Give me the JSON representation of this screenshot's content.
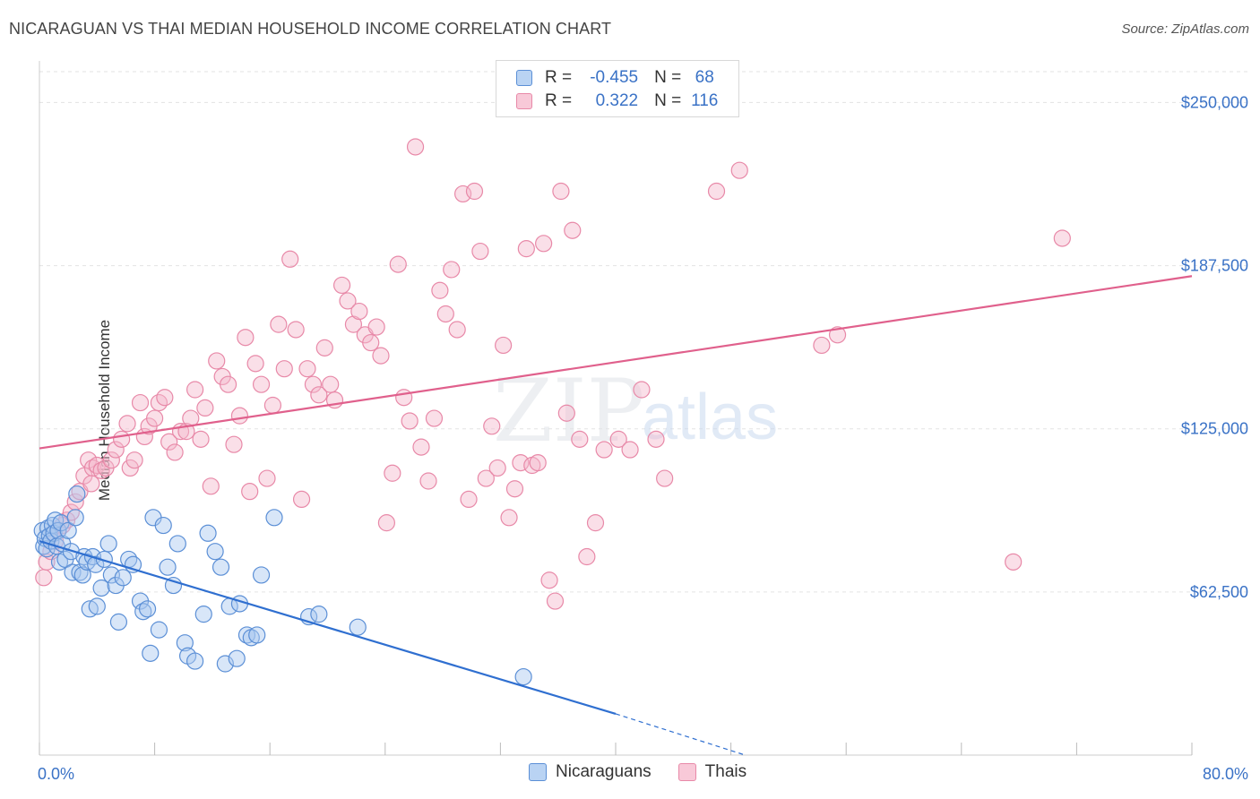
{
  "header": {
    "title": "NICARAGUAN VS THAI MEDIAN HOUSEHOLD INCOME CORRELATION CHART",
    "source": "Source: ZipAtlas.com"
  },
  "legend_top": {
    "rows": [
      {
        "r_label": "R =",
        "r_value": "-0.455",
        "n_label": "N =",
        "n_value": "68"
      },
      {
        "r_label": "R =",
        "r_value": "0.322",
        "n_label": "N =",
        "n_value": "116"
      }
    ]
  },
  "legend_bottom": {
    "items": [
      "Nicaraguans",
      "Thais"
    ]
  },
  "watermark": {
    "zip": "ZIP",
    "atlas": "atlas"
  },
  "colors": {
    "blue_fill": "#a9c8ef",
    "blue_stroke": "#5b8fd6",
    "blue_line": "#2f6fd0",
    "pink_fill": "#f5b8cb",
    "pink_stroke": "#e889a8",
    "pink_line": "#e0608c",
    "grid": "#e3e3e3",
    "tick_text": "#3a72c6"
  },
  "chart_data": {
    "type": "scatter",
    "title": "NICARAGUAN VS THAI MEDIAN HOUSEHOLD INCOME CORRELATION CHART",
    "xlabel": "",
    "ylabel": "Median Household Income",
    "xlim": [
      0,
      80
    ],
    "ylim": [
      0,
      262500
    ],
    "x_tick_labels": [
      "0.0%",
      "80.0%"
    ],
    "y_ticks": [
      62500,
      125000,
      187500,
      250000
    ],
    "y_tick_labels": [
      "$62,500",
      "$125,000",
      "$187,500",
      "$250,000"
    ],
    "grid": true,
    "legend_position": "top-center",
    "series": [
      {
        "name": "Nicaraguans",
        "r": -0.455,
        "n": 68,
        "trend": {
          "x0": 0,
          "y0": 82000,
          "x1": 40,
          "y1": 15800,
          "dashed_to_x": 49,
          "dashed_to_y": 0
        },
        "points": [
          [
            0.2,
            86000
          ],
          [
            0.3,
            80000
          ],
          [
            0.4,
            83000
          ],
          [
            0.5,
            79000
          ],
          [
            0.6,
            87000
          ],
          [
            0.7,
            84000
          ],
          [
            0.8,
            82000
          ],
          [
            0.9,
            88000
          ],
          [
            1.0,
            85000
          ],
          [
            1.1,
            90000
          ],
          [
            1.2,
            80000
          ],
          [
            1.3,
            86000
          ],
          [
            1.4,
            74000
          ],
          [
            1.5,
            89000
          ],
          [
            1.6,
            81000
          ],
          [
            1.8,
            75000
          ],
          [
            2.0,
            86000
          ],
          [
            2.2,
            78000
          ],
          [
            2.3,
            70000
          ],
          [
            2.5,
            91000
          ],
          [
            2.6,
            100000
          ],
          [
            2.8,
            70000
          ],
          [
            3.0,
            69000
          ],
          [
            3.1,
            76000
          ],
          [
            3.3,
            74000
          ],
          [
            3.5,
            56000
          ],
          [
            3.7,
            76000
          ],
          [
            3.9,
            73000
          ],
          [
            4.0,
            57000
          ],
          [
            4.3,
            64000
          ],
          [
            4.5,
            75000
          ],
          [
            4.8,
            81000
          ],
          [
            5.0,
            69000
          ],
          [
            5.3,
            65000
          ],
          [
            5.5,
            51000
          ],
          [
            5.8,
            68000
          ],
          [
            6.2,
            75000
          ],
          [
            6.5,
            73000
          ],
          [
            7.0,
            59000
          ],
          [
            7.2,
            55000
          ],
          [
            7.5,
            56000
          ],
          [
            7.7,
            39000
          ],
          [
            7.9,
            91000
          ],
          [
            8.3,
            48000
          ],
          [
            8.6,
            88000
          ],
          [
            8.9,
            72000
          ],
          [
            9.3,
            65000
          ],
          [
            9.6,
            81000
          ],
          [
            10.1,
            43000
          ],
          [
            10.3,
            38000
          ],
          [
            10.8,
            36000
          ],
          [
            11.4,
            54000
          ],
          [
            11.7,
            85000
          ],
          [
            12.2,
            78000
          ],
          [
            12.6,
            72000
          ],
          [
            12.9,
            35000
          ],
          [
            13.2,
            57000
          ],
          [
            13.7,
            37000
          ],
          [
            13.9,
            58000
          ],
          [
            14.4,
            46000
          ],
          [
            14.7,
            45000
          ],
          [
            15.1,
            46000
          ],
          [
            15.4,
            69000
          ],
          [
            16.3,
            91000
          ],
          [
            18.7,
            53000
          ],
          [
            19.4,
            54000
          ],
          [
            22.1,
            49000
          ],
          [
            33.6,
            30000
          ]
        ]
      },
      {
        "name": "Thais",
        "r": 0.322,
        "n": 116,
        "trend": {
          "x0": 0,
          "y0": 117500,
          "x1": 80,
          "y1": 183500
        },
        "points": [
          [
            0.3,
            68000
          ],
          [
            0.5,
            74000
          ],
          [
            0.8,
            78000
          ],
          [
            1.1,
            82000
          ],
          [
            1.3,
            86000
          ],
          [
            1.6,
            88000
          ],
          [
            1.9,
            90000
          ],
          [
            2.2,
            93000
          ],
          [
            2.5,
            97000
          ],
          [
            2.8,
            101000
          ],
          [
            3.1,
            107000
          ],
          [
            3.4,
            113000
          ],
          [
            3.7,
            110000
          ],
          [
            4.0,
            111000
          ],
          [
            4.3,
            109000
          ],
          [
            4.6,
            110000
          ],
          [
            5.0,
            113000
          ],
          [
            5.3,
            117000
          ],
          [
            5.7,
            121000
          ],
          [
            6.1,
            127000
          ],
          [
            6.3,
            110000
          ],
          [
            6.6,
            113000
          ],
          [
            7.0,
            135000
          ],
          [
            7.3,
            122000
          ],
          [
            7.6,
            126000
          ],
          [
            8.0,
            129000
          ],
          [
            8.3,
            135000
          ],
          [
            8.7,
            137000
          ],
          [
            9.0,
            120000
          ],
          [
            9.4,
            116000
          ],
          [
            9.8,
            124000
          ],
          [
            10.2,
            124000
          ],
          [
            10.5,
            129000
          ],
          [
            10.8,
            140000
          ],
          [
            11.2,
            121000
          ],
          [
            11.5,
            133000
          ],
          [
            11.9,
            103000
          ],
          [
            12.3,
            151000
          ],
          [
            12.7,
            145000
          ],
          [
            13.1,
            142000
          ],
          [
            13.5,
            119000
          ],
          [
            13.9,
            130000
          ],
          [
            14.3,
            160000
          ],
          [
            14.6,
            101000
          ],
          [
            15.0,
            150000
          ],
          [
            15.4,
            142000
          ],
          [
            15.8,
            106000
          ],
          [
            16.2,
            134000
          ],
          [
            16.6,
            165000
          ],
          [
            17.0,
            148000
          ],
          [
            17.4,
            190000
          ],
          [
            17.8,
            163000
          ],
          [
            18.2,
            98000
          ],
          [
            18.6,
            148000
          ],
          [
            19.0,
            142000
          ],
          [
            19.4,
            138000
          ],
          [
            19.8,
            156000
          ],
          [
            20.2,
            142000
          ],
          [
            20.5,
            136000
          ],
          [
            21.0,
            180000
          ],
          [
            21.4,
            174000
          ],
          [
            21.8,
            165000
          ],
          [
            22.2,
            170000
          ],
          [
            22.6,
            161000
          ],
          [
            23.0,
            158000
          ],
          [
            23.4,
            164000
          ],
          [
            23.7,
            153000
          ],
          [
            24.1,
            89000
          ],
          [
            24.5,
            108000
          ],
          [
            24.9,
            188000
          ],
          [
            25.3,
            137000
          ],
          [
            25.7,
            128000
          ],
          [
            26.1,
            233000
          ],
          [
            26.5,
            118000
          ],
          [
            27.0,
            105000
          ],
          [
            27.4,
            129000
          ],
          [
            27.8,
            178000
          ],
          [
            28.2,
            169000
          ],
          [
            28.6,
            186000
          ],
          [
            29.0,
            163000
          ],
          [
            29.4,
            215000
          ],
          [
            29.8,
            98000
          ],
          [
            30.2,
            216000
          ],
          [
            30.6,
            193000
          ],
          [
            31.0,
            106000
          ],
          [
            31.4,
            126000
          ],
          [
            31.8,
            110000
          ],
          [
            32.2,
            157000
          ],
          [
            32.6,
            91000
          ],
          [
            33.0,
            102000
          ],
          [
            33.4,
            112000
          ],
          [
            33.8,
            194000
          ],
          [
            34.2,
            111000
          ],
          [
            34.6,
            112000
          ],
          [
            35.0,
            196000
          ],
          [
            35.4,
            67000
          ],
          [
            35.8,
            59000
          ],
          [
            36.2,
            216000
          ],
          [
            36.6,
            131000
          ],
          [
            37.0,
            201000
          ],
          [
            37.5,
            121000
          ],
          [
            38.0,
            76000
          ],
          [
            38.6,
            89000
          ],
          [
            39.2,
            117000
          ],
          [
            40.2,
            121000
          ],
          [
            41.0,
            117000
          ],
          [
            41.8,
            140000
          ],
          [
            42.8,
            121000
          ],
          [
            43.4,
            106000
          ],
          [
            47.0,
            216000
          ],
          [
            48.6,
            224000
          ],
          [
            54.3,
            157000
          ],
          [
            55.4,
            161000
          ],
          [
            67.6,
            74000
          ],
          [
            71.0,
            198000
          ],
          [
            3.6,
            104000
          ]
        ]
      }
    ]
  }
}
